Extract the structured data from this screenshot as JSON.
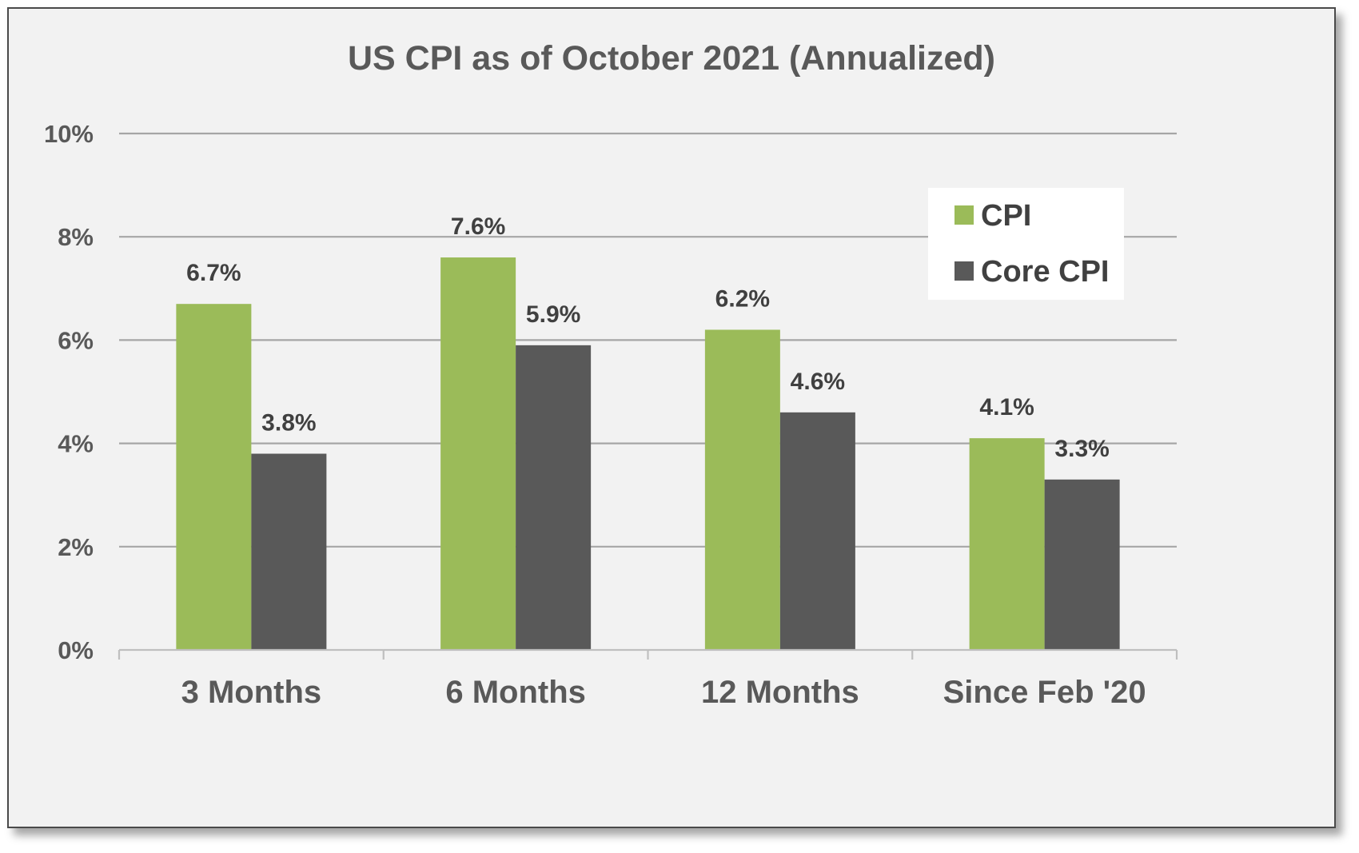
{
  "chart_data": {
    "type": "bar",
    "title": "US CPI as of October 2021 (Annualized)",
    "xlabel": "",
    "ylabel": "",
    "categories": [
      "3 Months",
      "6 Months",
      "12 Months",
      "Since Feb '20"
    ],
    "series": [
      {
        "name": "CPI",
        "color": "#9bbb59",
        "values": [
          6.7,
          7.6,
          6.2,
          4.1
        ],
        "labels": [
          "6.7%",
          "7.6%",
          "6.2%",
          "4.1%"
        ]
      },
      {
        "name": "Core CPI",
        "color": "#595959",
        "values": [
          3.8,
          5.9,
          4.6,
          3.3
        ],
        "labels": [
          "3.8%",
          "5.9%",
          "4.6%",
          "3.3%"
        ]
      }
    ],
    "ylim": [
      0,
      10
    ],
    "yticks": [
      0,
      2,
      4,
      6,
      8,
      10
    ],
    "ytick_labels": [
      "0%",
      "2%",
      "4%",
      "6%",
      "8%",
      "10%"
    ],
    "grid": true,
    "legend_position": "top-right"
  }
}
